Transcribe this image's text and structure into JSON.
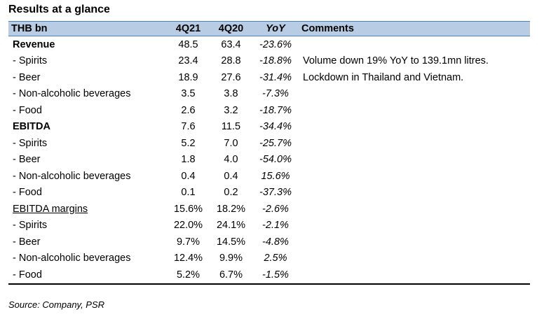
{
  "title": "Results at a glance",
  "header": {
    "label": "THB bn",
    "col_a": "4Q21",
    "col_b": "4Q20",
    "yoy": "YoY",
    "comments": "Comments"
  },
  "rows": [
    {
      "label": "Revenue",
      "a": "48.5",
      "b": "63.4",
      "yoy": "-23.6%",
      "comment": ""
    },
    {
      "label": " - Spirits",
      "a": "23.4",
      "b": "28.8",
      "yoy": "-18.8%",
      "comment": "Volume down 19% YoY to 139.1mn litres."
    },
    {
      "label": " - Beer",
      "a": "18.9",
      "b": "27.6",
      "yoy": "-31.4%",
      "comment": "Lockdown in Thailand and Vietnam."
    },
    {
      "label": " - Non-alcoholic beverages",
      "a": "3.5",
      "b": "3.8",
      "yoy": "-7.3%",
      "comment": ""
    },
    {
      "label": " - Food",
      "a": "2.6",
      "b": "3.2",
      "yoy": "-18.7%",
      "comment": ""
    },
    {
      "label": "EBITDA",
      "a": "7.6",
      "b": "11.5",
      "yoy": "-34.4%",
      "comment": ""
    },
    {
      "label": " - Spirits",
      "a": "5.2",
      "b": "7.0",
      "yoy": "-25.7%",
      "comment": ""
    },
    {
      "label": " - Beer",
      "a": "1.8",
      "b": "4.0",
      "yoy": "-54.0%",
      "comment": ""
    },
    {
      "label": " - Non-alcoholic beverages",
      "a": "0.4",
      "b": "0.4",
      "yoy": "15.6%",
      "comment": ""
    },
    {
      "label": " - Food",
      "a": "0.1",
      "b": "0.2",
      "yoy": "-37.3%",
      "comment": ""
    },
    {
      "label": "EBITDA margins",
      "a": "15.6%",
      "b": "18.2%",
      "yoy": "-2.6%",
      "comment": ""
    },
    {
      "label": " - Spirits",
      "a": "22.0%",
      "b": "24.1%",
      "yoy": "-2.1%",
      "comment": ""
    },
    {
      "label": " - Beer",
      "a": "9.7%",
      "b": "14.5%",
      "yoy": "-4.8%",
      "comment": ""
    },
    {
      "label": " - Non-alcoholic beverages",
      "a": "12.4%",
      "b": "9.9%",
      "yoy": "2.5%",
      "comment": ""
    },
    {
      "label": " - Food",
      "a": "5.2%",
      "b": "6.7%",
      "yoy": "-1.5%",
      "comment": ""
    }
  ],
  "source": "Source: Company, PSR"
}
